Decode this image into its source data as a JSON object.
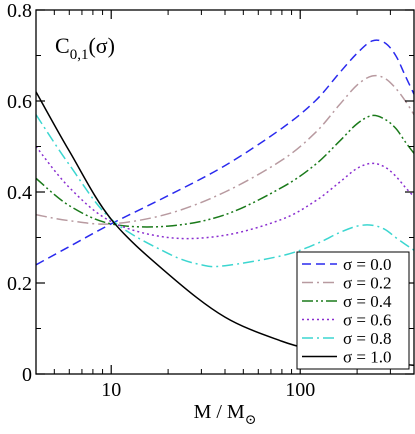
{
  "chart_data": {
    "type": "line",
    "title": "",
    "annotation": {
      "main": "C",
      "sub": "0,1",
      "arg": "(σ)"
    },
    "xlabel": {
      "main": "M / M",
      "sub": "⊙"
    },
    "ylabel": "",
    "xscale": "log",
    "xlim": [
      4,
      400
    ],
    "ylim": [
      0,
      0.8
    ],
    "xticks": [
      10,
      100
    ],
    "xtick_labels": [
      "10",
      "100"
    ],
    "yticks": [
      0,
      0.2,
      0.4,
      0.6,
      0.8
    ],
    "ytick_labels": [
      "0",
      "0.2",
      "0.4",
      "0.6",
      "0.8"
    ],
    "grid": false,
    "legend_position": "bottom-right",
    "series": [
      {
        "name": "σ = 0.0",
        "color": "#2a2aee",
        "dash": "dashed",
        "x": [
          4,
          6,
          10,
          20,
          40,
          80,
          120,
          160,
          200,
          240,
          280,
          320,
          360,
          400
        ],
        "y": [
          0.24,
          0.28,
          0.33,
          0.392,
          0.458,
          0.54,
          0.6,
          0.66,
          0.705,
          0.732,
          0.728,
          0.7,
          0.655,
          0.615
        ]
      },
      {
        "name": "σ = 0.2",
        "color": "#b89aa0",
        "dash": "dashdot",
        "x": [
          4,
          6,
          10,
          20,
          40,
          80,
          120,
          160,
          200,
          240,
          280,
          320,
          360,
          400
        ],
        "y": [
          0.35,
          0.337,
          0.33,
          0.352,
          0.4,
          0.47,
          0.53,
          0.59,
          0.635,
          0.655,
          0.65,
          0.628,
          0.6,
          0.57
        ]
      },
      {
        "name": "σ = 0.4",
        "color": "#1a7a1a",
        "dash": "dashdotdot",
        "x": [
          4,
          6,
          10,
          20,
          40,
          80,
          120,
          160,
          200,
          240,
          280,
          320,
          360,
          400
        ],
        "y": [
          0.43,
          0.37,
          0.33,
          0.325,
          0.35,
          0.41,
          0.46,
          0.51,
          0.55,
          0.568,
          0.56,
          0.54,
          0.51,
          0.485
        ]
      },
      {
        "name": "σ = 0.6",
        "color": "#8a2ed0",
        "dash": "dotted",
        "x": [
          4,
          6,
          10,
          20,
          40,
          80,
          120,
          160,
          200,
          240,
          280,
          320,
          360,
          400
        ],
        "y": [
          0.5,
          0.41,
          0.335,
          0.3,
          0.305,
          0.34,
          0.38,
          0.42,
          0.452,
          0.463,
          0.455,
          0.435,
          0.41,
          0.39
        ]
      },
      {
        "name": "σ = 0.8",
        "color": "#3cd6d0",
        "dash": "dashdot",
        "x": [
          4,
          6,
          10,
          20,
          30,
          40,
          80,
          120,
          160,
          200,
          240,
          280,
          320,
          360,
          400
        ],
        "y": [
          0.57,
          0.46,
          0.34,
          0.265,
          0.24,
          0.238,
          0.26,
          0.285,
          0.31,
          0.325,
          0.327,
          0.318,
          0.3,
          0.285,
          0.272
        ]
      },
      {
        "name": "σ = 1.0",
        "color": "#000000",
        "dash": "solid",
        "x": [
          4,
          6,
          10,
          20,
          40,
          80,
          120,
          160,
          200,
          240,
          280,
          320,
          360,
          400
        ],
        "y": [
          0.62,
          0.49,
          0.34,
          0.22,
          0.125,
          0.072,
          0.052,
          0.042,
          0.035,
          0.03,
          0.027,
          0.024,
          0.021,
          0.019
        ]
      }
    ]
  }
}
